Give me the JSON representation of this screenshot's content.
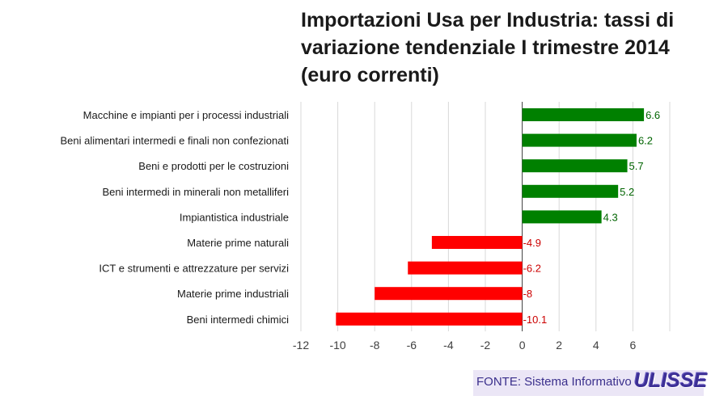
{
  "chart_data": {
    "type": "bar",
    "orientation": "horizontal",
    "title": "Importazioni Usa per Industria: tassi di variazione tendenziale I trimestre 2014 (euro correnti)",
    "categories": [
      "Macchine e impianti per i processi industriali",
      "Beni alimentari intermedi e finali non confezionati",
      "Beni e prodotti per le costruzioni",
      "Beni intermedi in minerali non metalliferi",
      "Impiantistica industriale",
      "Materie prime naturali",
      "ICT e strumenti e attrezzature per servizi",
      "Materie prime industriali",
      "Beni intermedi chimici"
    ],
    "values": [
      6.6,
      6.2,
      5.7,
      5.2,
      4.3,
      -4.9,
      -6.2,
      -8,
      -10.1
    ],
    "value_labels": [
      "6.6",
      "6.2",
      "5.7",
      "5.2",
      "4.3",
      "-4.9",
      "-6.2",
      "-8",
      "-10.1"
    ],
    "xlim": [
      -12,
      8
    ],
    "xticks": [
      -12,
      -10,
      -8,
      -6,
      -4,
      -2,
      0,
      2,
      4,
      6
    ],
    "grid": "vertical",
    "legend": "none",
    "colors": {
      "positive": "#008000",
      "negative": "#ff0000",
      "positive_label": "#006400",
      "negative_label": "#cc0000"
    }
  },
  "source": {
    "text": "FONTE: Sistema Informativo",
    "logo": "ULISSE"
  }
}
